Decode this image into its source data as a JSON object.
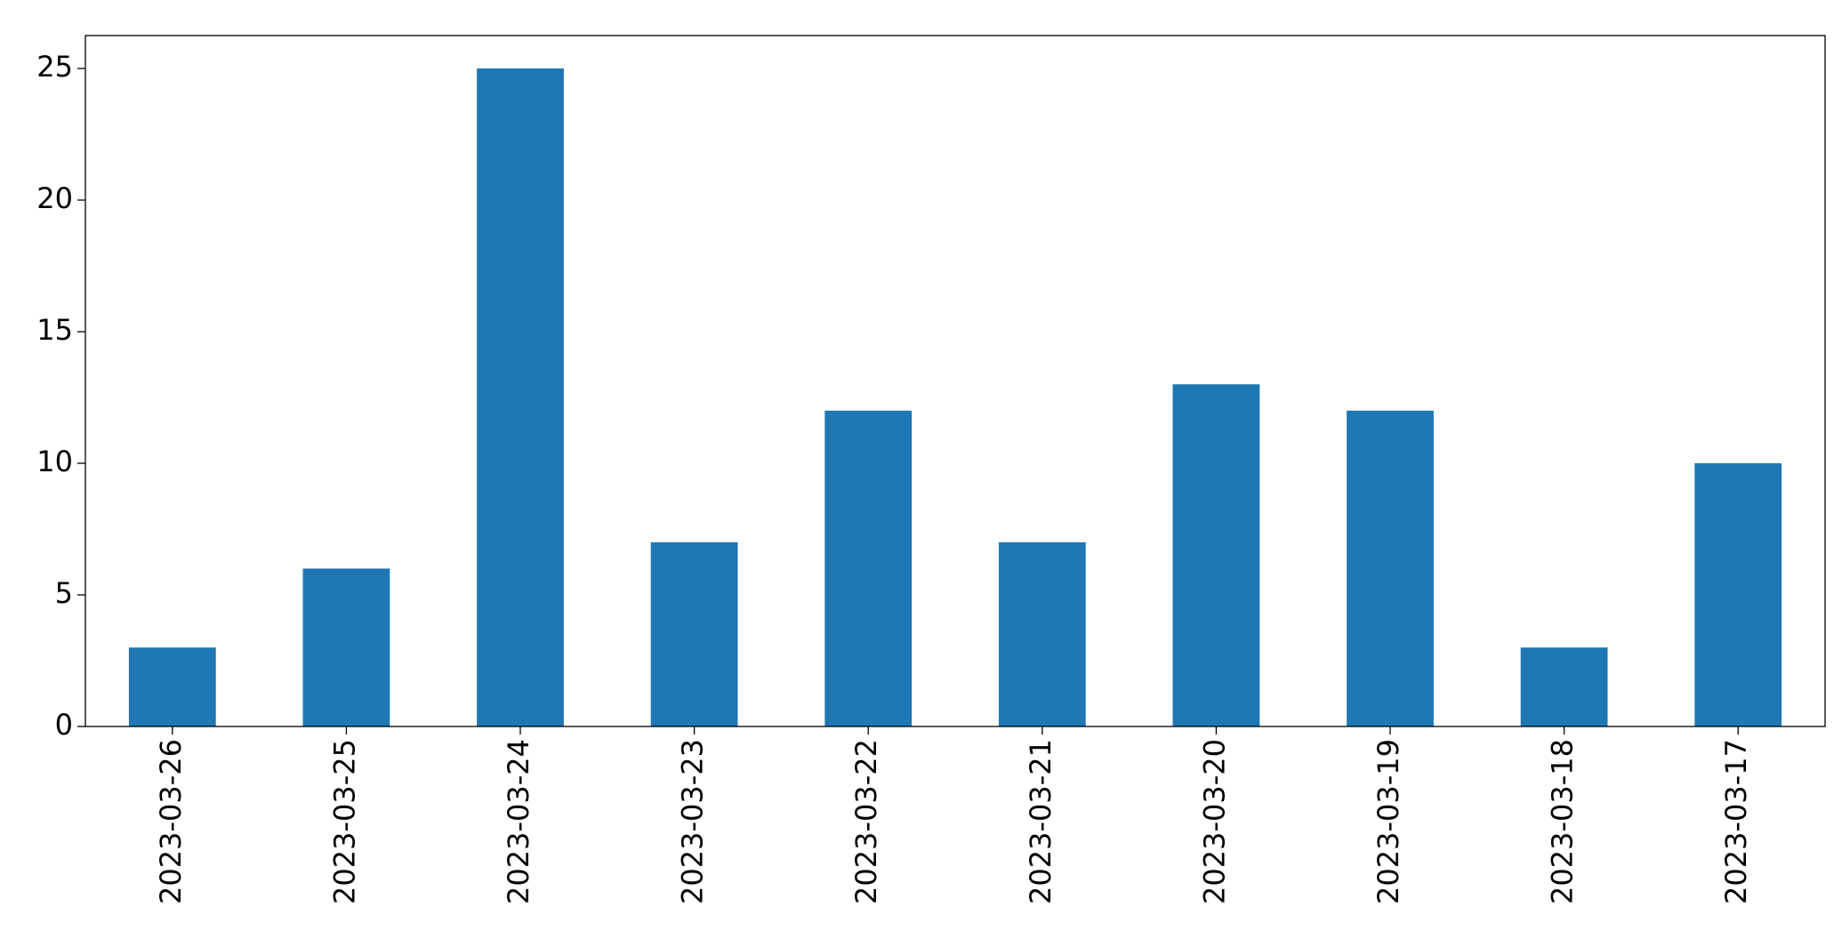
{
  "chart_data": {
    "type": "bar",
    "categories": [
      "2023-03-26",
      "2023-03-25",
      "2023-03-24",
      "2023-03-23",
      "2023-03-22",
      "2023-03-21",
      "2023-03-20",
      "2023-03-19",
      "2023-03-18",
      "2023-03-17"
    ],
    "values": [
      3,
      6,
      25,
      7,
      12,
      7,
      13,
      12,
      3,
      10
    ],
    "color": "#1f77b4",
    "ylim": [
      0,
      26.25
    ],
    "yticks": [
      0,
      5,
      10,
      15,
      20,
      25
    ],
    "grid": false
  }
}
